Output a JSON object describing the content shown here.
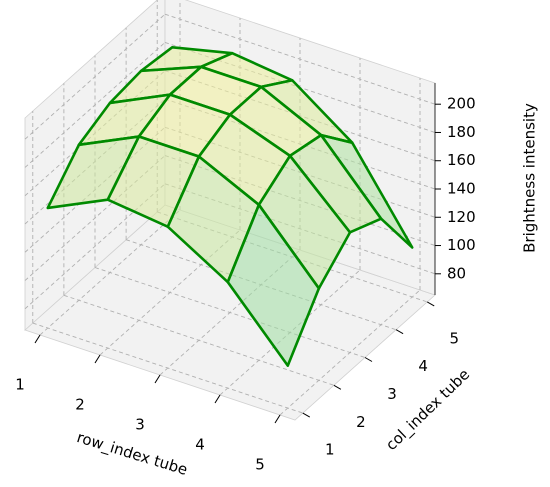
{
  "chart_data": {
    "type": "surface3d",
    "xlabel": "row_index tube",
    "ylabel": "col_index tube",
    "zlabel": "Brightness intensity",
    "x": [
      1,
      2,
      3,
      4,
      5
    ],
    "y": [
      1,
      2,
      3,
      4,
      5
    ],
    "z": [
      [
        150,
        175,
        185,
        188,
        185
      ],
      [
        170,
        195,
        205,
        205,
        195
      ],
      [
        165,
        195,
        205,
        205,
        190
      ],
      [
        140,
        175,
        190,
        185,
        160
      ],
      [
        95,
        130,
        150,
        140,
        100
      ]
    ],
    "xlim": [
      0.75,
      5.25
    ],
    "ylim": [
      0.75,
      5.25
    ],
    "zlim": [
      65,
      215
    ],
    "xticks": [
      1,
      2,
      3,
      4,
      5
    ],
    "yticks": [
      1,
      2,
      3,
      4,
      5
    ],
    "zticks": [
      80,
      100,
      120,
      140,
      160,
      180,
      200
    ],
    "edge_color": "#008a00",
    "colormap": [
      "#3fbfb8",
      "#a8e0a0",
      "#fff29a"
    ],
    "grid": true
  }
}
